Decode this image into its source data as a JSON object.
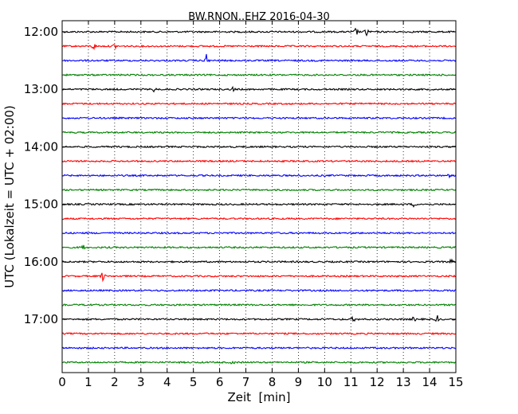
{
  "chart_data": {
    "type": "line",
    "title": "BW.RNON..EHZ 2016-04-30",
    "xlabel": "Zeit  [min]",
    "ylabel": "UTC (Lokalzeit = UTC + 02:00)",
    "xlim": [
      0,
      15
    ],
    "x_ticks": [
      "0",
      "1",
      "2",
      "3",
      "4",
      "5",
      "6",
      "7",
      "8",
      "9",
      "10",
      "11",
      "12",
      "13",
      "14",
      "15"
    ],
    "y_ticks": [
      "12:00",
      "13:00",
      "14:00",
      "15:00",
      "16:00",
      "17:00"
    ],
    "grid": "vertical-dotted",
    "colors": [
      "#000000",
      "#ff0000",
      "#0000ff",
      "#008000"
    ],
    "traces": [
      {
        "time": "12:00",
        "color": "#000000",
        "events": [
          {
            "t": 11.2,
            "amp": 5
          },
          {
            "t": 11.6,
            "amp": 6
          }
        ]
      },
      {
        "time": "12:15",
        "color": "#ff0000",
        "events": [
          {
            "t": 1.2,
            "amp": 4
          },
          {
            "t": 2.0,
            "amp": 3
          }
        ]
      },
      {
        "time": "12:30",
        "color": "#0000ff",
        "events": [
          {
            "t": 5.5,
            "amp": 8
          }
        ]
      },
      {
        "time": "12:45",
        "color": "#008000",
        "events": []
      },
      {
        "time": "13:00",
        "color": "#000000",
        "events": [
          {
            "t": 3.5,
            "amp": 2.5
          },
          {
            "t": 6.5,
            "amp": 2.5
          }
        ]
      },
      {
        "time": "13:15",
        "color": "#ff0000",
        "events": []
      },
      {
        "time": "13:30",
        "color": "#0000ff",
        "events": []
      },
      {
        "time": "13:45",
        "color": "#008000",
        "events": []
      },
      {
        "time": "14:00",
        "color": "#000000",
        "events": []
      },
      {
        "time": "14:15",
        "color": "#ff0000",
        "events": []
      },
      {
        "time": "14:30",
        "color": "#0000ff",
        "events": [
          {
            "t": 14.7,
            "amp": 3
          }
        ]
      },
      {
        "time": "14:45",
        "color": "#008000",
        "events": []
      },
      {
        "time": "15:00",
        "color": "#000000",
        "events": [
          {
            "t": 13.4,
            "amp": 2.5
          }
        ]
      },
      {
        "time": "15:15",
        "color": "#ff0000",
        "events": []
      },
      {
        "time": "15:30",
        "color": "#0000ff",
        "events": []
      },
      {
        "time": "15:45",
        "color": "#008000",
        "events": [
          {
            "t": 0.8,
            "amp": 3
          }
        ]
      },
      {
        "time": "16:00",
        "color": "#000000",
        "events": [
          {
            "t": 14.8,
            "amp": 3
          }
        ]
      },
      {
        "time": "16:15",
        "color": "#ff0000",
        "events": [
          {
            "t": 1.55,
            "amp": 6
          }
        ]
      },
      {
        "time": "16:30",
        "color": "#0000ff",
        "events": []
      },
      {
        "time": "16:45",
        "color": "#008000",
        "events": [
          {
            "t": 0.95,
            "amp": 3
          }
        ]
      },
      {
        "time": "17:00",
        "color": "#000000",
        "events": [
          {
            "t": 11.1,
            "amp": 3
          },
          {
            "t": 13.4,
            "amp": 2.5
          },
          {
            "t": 14.3,
            "amp": 4
          }
        ]
      },
      {
        "time": "17:15",
        "color": "#ff0000",
        "events": []
      },
      {
        "time": "17:30",
        "color": "#0000ff",
        "events": []
      },
      {
        "time": "17:45",
        "color": "#008000",
        "events": [
          {
            "t": 6.5,
            "amp": 2
          }
        ]
      }
    ]
  }
}
